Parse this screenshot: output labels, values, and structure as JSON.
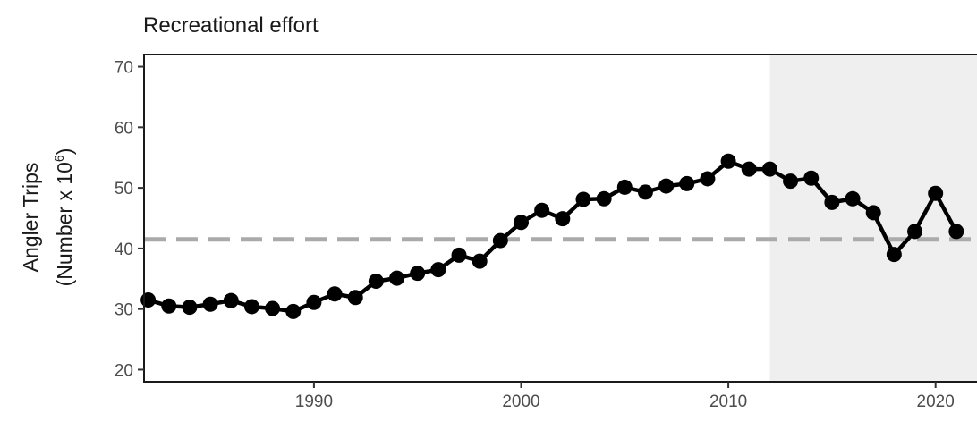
{
  "chart_data": {
    "type": "line",
    "title": "Recreational effort",
    "xlabel": "",
    "ylabel": "Angler Trips",
    "ylabel_sub_base": "(Number x 10",
    "ylabel_sub_exp": "6",
    "ylabel_sub_close": ")",
    "xlim": [
      1981.8,
      2022
    ],
    "ylim": [
      18,
      72
    ],
    "x_ticks": [
      1990,
      2000,
      2010,
      2020
    ],
    "y_ticks": [
      20,
      30,
      40,
      50,
      60,
      70
    ],
    "reference_line": {
      "y": 41.5,
      "style": "dashed",
      "color": "#aaaaaa"
    },
    "shaded_region": {
      "x_start": 2012,
      "color": "#efefef"
    },
    "grid": false,
    "series": [
      {
        "color": "#000000",
        "x": [
          1982,
          1983,
          1984,
          1985,
          1986,
          1987,
          1988,
          1989,
          1990,
          1991,
          1992,
          1993,
          1994,
          1995,
          1996,
          1997,
          1998,
          1999,
          2000,
          2001,
          2002,
          2003,
          2004,
          2005,
          2006,
          2007,
          2008,
          2009,
          2010,
          2011,
          2012,
          2013,
          2014,
          2015,
          2016,
          2017,
          2018,
          2019,
          2020,
          2021
        ],
        "y": [
          31.5,
          30.5,
          30.3,
          30.8,
          31.4,
          30.4,
          30.1,
          29.6,
          31.1,
          32.5,
          31.9,
          34.6,
          35.1,
          35.9,
          36.5,
          38.9,
          37.9,
          41.3,
          44.3,
          46.3,
          44.9,
          48.1,
          48.2,
          50.1,
          49.3,
          50.3,
          50.7,
          51.5,
          54.4,
          53.1,
          53.1,
          51.1,
          51.6,
          47.6,
          48.2,
          45.9,
          39.0,
          42.8,
          49.1,
          42.8
        ]
      }
    ]
  }
}
